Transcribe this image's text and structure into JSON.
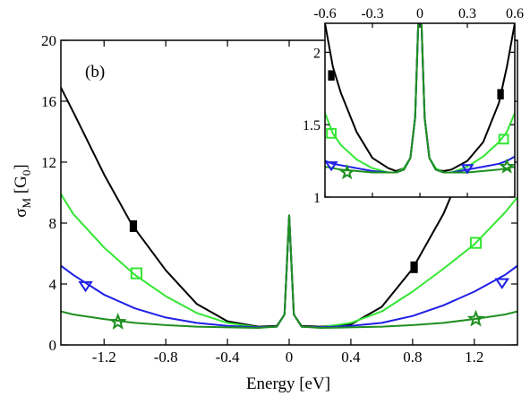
{
  "colors": {
    "black": "#000000",
    "light_green": "#33e633",
    "blue": "#1f1fe6",
    "dark_green": "#1f8f1f"
  },
  "chart_data": [
    {
      "type": "line",
      "panel_label": "(b)",
      "xlabel": "Energy [eV]",
      "ylabel": "σ",
      "ylabel_sub": "M",
      "ylabel_unit_open": " [G",
      "ylabel_unit_sub": "0",
      "ylabel_unit_close": "]",
      "xlim": [
        -1.48,
        1.48
      ],
      "ylim": [
        0,
        20
      ],
      "xticks": [
        -1.2,
        -0.8,
        -0.4,
        0,
        0.4,
        0.8,
        1.2
      ],
      "xtick_labels": [
        "-1.2",
        "-0.8",
        "-0.4",
        "0",
        "0.4",
        "0.8",
        "1.2"
      ],
      "yticks": [
        0,
        4,
        8,
        12,
        16,
        20
      ],
      "ytick_labels": [
        "0",
        "4",
        "8",
        "12",
        "16",
        "20"
      ],
      "grid": false,
      "series": [
        {
          "color_key": "black",
          "marker": "filled-rect",
          "x": [
            -1.48,
            -1.4,
            -1.2,
            -1.02,
            -0.8,
            -0.6,
            -0.4,
            -0.2,
            -0.08,
            -0.03,
            0,
            0.03,
            0.08,
            0.2,
            0.4,
            0.6,
            0.8,
            1.0,
            1.2,
            1.4,
            1.48
          ],
          "y": [
            16.9,
            15.3,
            11.2,
            7.9,
            4.9,
            2.7,
            1.55,
            1.2,
            1.25,
            2.0,
            8.5,
            2.0,
            1.25,
            1.2,
            1.35,
            2.5,
            5.0,
            8.6,
            13.4,
            18.6,
            20.5
          ],
          "markers": [
            {
              "x": -1.01,
              "y": 7.8
            },
            {
              "x": 0.81,
              "y": 5.1
            }
          ]
        },
        {
          "color_key": "light_green",
          "marker": "open-square",
          "x": [
            -1.48,
            -1.4,
            -1.2,
            -1.0,
            -0.8,
            -0.6,
            -0.4,
            -0.2,
            -0.08,
            -0.03,
            0,
            0.03,
            0.08,
            0.2,
            0.4,
            0.6,
            0.8,
            1.0,
            1.2,
            1.4,
            1.48
          ],
          "y": [
            9.9,
            8.6,
            6.4,
            4.6,
            3.2,
            2.1,
            1.45,
            1.15,
            1.2,
            2.0,
            8.5,
            2.0,
            1.2,
            1.15,
            1.45,
            2.2,
            3.5,
            5.0,
            6.6,
            8.7,
            9.7
          ],
          "markers": [
            {
              "x": -0.99,
              "y": 4.7
            },
            {
              "x": 1.21,
              "y": 6.7
            }
          ]
        },
        {
          "color_key": "blue",
          "marker": "open-triangle-down",
          "x": [
            -1.48,
            -1.4,
            -1.2,
            -1.0,
            -0.8,
            -0.6,
            -0.4,
            -0.2,
            -0.08,
            -0.03,
            0,
            0.03,
            0.08,
            0.2,
            0.4,
            0.6,
            0.8,
            1.0,
            1.2,
            1.4,
            1.48
          ],
          "y": [
            5.2,
            4.6,
            3.3,
            2.4,
            1.8,
            1.45,
            1.25,
            1.15,
            1.2,
            2.0,
            8.5,
            2.0,
            1.2,
            1.15,
            1.25,
            1.45,
            1.9,
            2.6,
            3.5,
            4.6,
            5.2
          ],
          "markers": [
            {
              "x": -1.32,
              "y": 3.9
            },
            {
              "x": 1.38,
              "y": 4.1
            }
          ]
        },
        {
          "color_key": "dark_green",
          "marker": "open-star",
          "x": [
            -1.48,
            -1.4,
            -1.2,
            -1.0,
            -0.8,
            -0.6,
            -0.4,
            -0.2,
            -0.08,
            -0.03,
            0,
            0.03,
            0.08,
            0.2,
            0.4,
            0.6,
            0.8,
            1.0,
            1.2,
            1.4,
            1.48
          ],
          "y": [
            2.2,
            2.0,
            1.7,
            1.45,
            1.3,
            1.2,
            1.15,
            1.12,
            1.2,
            2.0,
            8.5,
            2.0,
            1.2,
            1.12,
            1.15,
            1.2,
            1.3,
            1.45,
            1.7,
            2.0,
            2.2
          ],
          "markers": [
            {
              "x": -1.11,
              "y": 1.5
            },
            {
              "x": 1.21,
              "y": 1.7
            }
          ]
        }
      ]
    },
    {
      "type": "line",
      "role": "inset",
      "xlim": [
        -0.6,
        0.6
      ],
      "ylim": [
        1.0,
        2.2
      ],
      "xticks": [
        -0.6,
        -0.3,
        0,
        0.3,
        0.6
      ],
      "xtick_labels": [
        "-0.6",
        "-0.3",
        "0",
        "0.3",
        "0.6"
      ],
      "yticks": [
        1.0,
        1.5,
        2.0
      ],
      "ytick_labels": [
        "1",
        "1.5",
        "2"
      ],
      "grid": false,
      "series": [
        {
          "color_key": "black",
          "marker": "filled-rect",
          "x": [
            -0.6,
            -0.55,
            -0.5,
            -0.4,
            -0.3,
            -0.2,
            -0.15,
            -0.1,
            -0.06,
            -0.03,
            -0.01,
            0,
            0.01,
            0.03,
            0.06,
            0.1,
            0.15,
            0.2,
            0.3,
            0.4,
            0.5,
            0.55,
            0.6
          ],
          "y": [
            2.2,
            1.9,
            1.72,
            1.45,
            1.27,
            1.2,
            1.18,
            1.2,
            1.27,
            1.55,
            2.2,
            2.2,
            2.2,
            1.55,
            1.27,
            1.19,
            1.18,
            1.19,
            1.25,
            1.38,
            1.65,
            1.9,
            2.2
          ],
          "markers": [
            {
              "x": -0.56,
              "y": 1.84
            },
            {
              "x": 0.51,
              "y": 1.71
            }
          ]
        },
        {
          "color_key": "light_green",
          "marker": "open-square",
          "x": [
            -0.6,
            -0.55,
            -0.5,
            -0.4,
            -0.3,
            -0.2,
            -0.15,
            -0.1,
            -0.06,
            -0.03,
            -0.01,
            0,
            0.01,
            0.03,
            0.06,
            0.1,
            0.15,
            0.2,
            0.3,
            0.4,
            0.5,
            0.55,
            0.6
          ],
          "y": [
            1.58,
            1.44,
            1.36,
            1.26,
            1.2,
            1.17,
            1.17,
            1.2,
            1.27,
            1.55,
            2.2,
            2.2,
            2.2,
            1.55,
            1.27,
            1.2,
            1.17,
            1.17,
            1.21,
            1.28,
            1.38,
            1.45,
            1.58
          ],
          "markers": [
            {
              "x": -0.56,
              "y": 1.44
            },
            {
              "x": 0.53,
              "y": 1.4
            }
          ]
        },
        {
          "color_key": "blue",
          "marker": "open-triangle-down",
          "x": [
            -0.6,
            -0.55,
            -0.5,
            -0.4,
            -0.3,
            -0.2,
            -0.15,
            -0.1,
            -0.06,
            -0.03,
            -0.01,
            0,
            0.01,
            0.03,
            0.06,
            0.1,
            0.15,
            0.2,
            0.3,
            0.4,
            0.5,
            0.55,
            0.6
          ],
          "y": [
            1.25,
            1.23,
            1.22,
            1.2,
            1.18,
            1.17,
            1.17,
            1.19,
            1.27,
            1.55,
            2.2,
            2.2,
            2.2,
            1.55,
            1.27,
            1.19,
            1.17,
            1.17,
            1.19,
            1.21,
            1.23,
            1.25,
            1.28
          ],
          "markers": [
            {
              "x": -0.56,
              "y": 1.22
            },
            {
              "x": 0.3,
              "y": 1.2
            }
          ]
        },
        {
          "color_key": "dark_green",
          "marker": "open-star",
          "x": [
            -0.6,
            -0.55,
            -0.5,
            -0.4,
            -0.3,
            -0.2,
            -0.15,
            -0.1,
            -0.06,
            -0.03,
            -0.01,
            0,
            0.01,
            0.03,
            0.06,
            0.1,
            0.15,
            0.2,
            0.3,
            0.4,
            0.5,
            0.55,
            0.6
          ],
          "y": [
            1.21,
            1.2,
            1.19,
            1.18,
            1.17,
            1.17,
            1.17,
            1.19,
            1.27,
            1.55,
            2.2,
            2.2,
            2.2,
            1.55,
            1.27,
            1.19,
            1.17,
            1.17,
            1.17,
            1.18,
            1.19,
            1.2,
            1.21
          ],
          "markers": [
            {
              "x": -0.46,
              "y": 1.17
            },
            {
              "x": 0.55,
              "y": 1.21
            }
          ]
        }
      ]
    }
  ]
}
